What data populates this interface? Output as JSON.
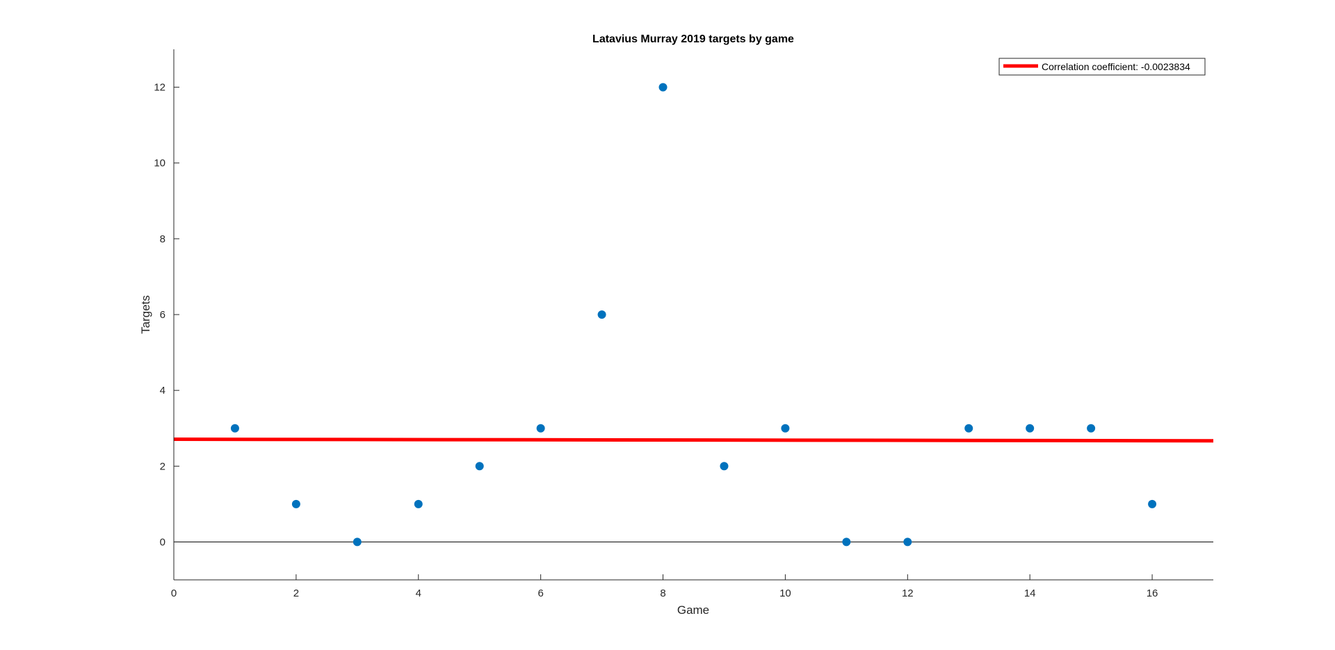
{
  "chart_data": {
    "type": "scatter",
    "title": "Latavius Murray 2019 targets by game",
    "xlabel": "Game",
    "ylabel": "Targets",
    "xlim": [
      0,
      17
    ],
    "ylim": [
      -1,
      13
    ],
    "xticks": [
      0,
      2,
      4,
      6,
      8,
      10,
      12,
      14,
      16
    ],
    "yticks": [
      0,
      2,
      4,
      6,
      8,
      10,
      12
    ],
    "grid": false,
    "zero_line": true,
    "legend_position": "top-right",
    "series": [
      {
        "type": "scatter",
        "color": "#0072BD",
        "x": [
          1,
          2,
          3,
          4,
          5,
          6,
          7,
          8,
          9,
          10,
          11,
          12,
          13,
          14,
          15,
          16
        ],
        "y": [
          3,
          1,
          0,
          1,
          2,
          3,
          6,
          12,
          2,
          3,
          0,
          0,
          3,
          3,
          3,
          1
        ]
      },
      {
        "type": "line",
        "name": "Correlation coefficient: -0.0023834",
        "color": "#FF0000",
        "x": [
          0,
          17
        ],
        "y": [
          2.71,
          2.67
        ]
      }
    ]
  }
}
